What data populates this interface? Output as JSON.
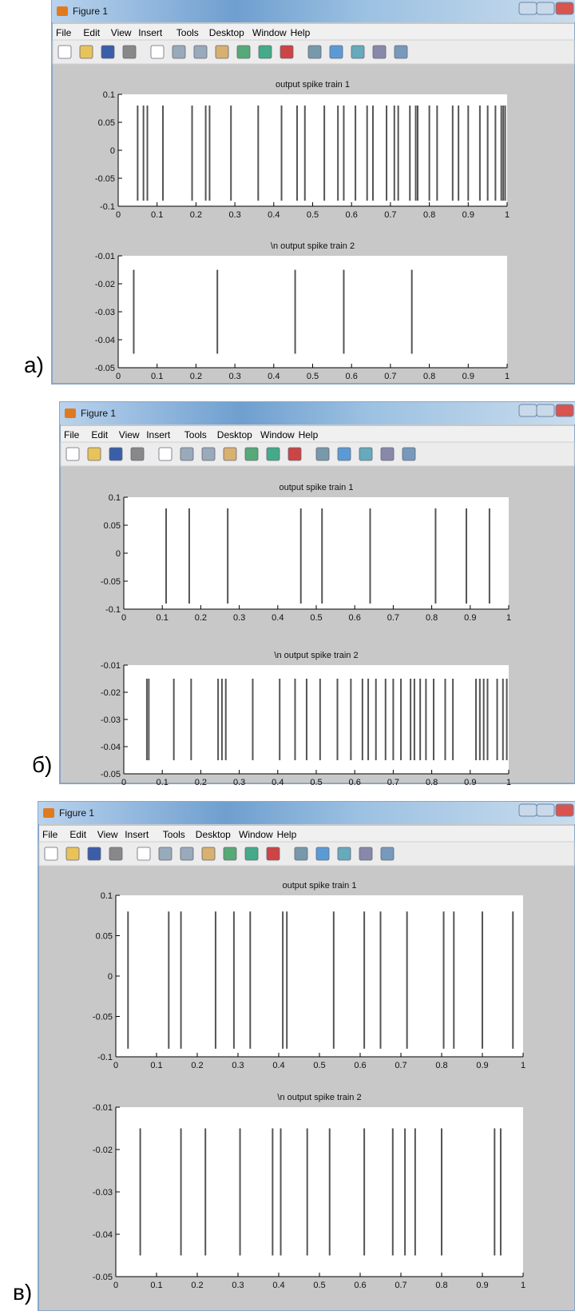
{
  "panels": [
    {
      "label": "а)",
      "window": {
        "title": "Figure 1",
        "menu": [
          "File",
          "Edit",
          "View",
          "Insert",
          "Tools",
          "Desktop",
          "Window",
          "Help"
        ]
      },
      "chart_data": [
        {
          "type": "spike",
          "title": "output spike train 1",
          "x": [
            0.05,
            0.065,
            0.075,
            0.115,
            0.19,
            0.225,
            0.235,
            0.29,
            0.36,
            0.42,
            0.46,
            0.48,
            0.53,
            0.565,
            0.58,
            0.61,
            0.64,
            0.655,
            0.69,
            0.71,
            0.72,
            0.75,
            0.765,
            0.77,
            0.8,
            0.82,
            0.86,
            0.875,
            0.9,
            0.93,
            0.95,
            0.97,
            0.985,
            0.99,
            0.995
          ],
          "y_low": -0.09,
          "y_high": 0.08,
          "color": "#555555",
          "xlim": [
            0,
            1
          ],
          "ylim": [
            -0.1,
            0.1
          ],
          "xticks": [
            0,
            0.1,
            0.2,
            0.3,
            0.4,
            0.5,
            0.6,
            0.7,
            0.8,
            0.9,
            1
          ],
          "yticks": [
            -0.1,
            -0.05,
            0,
            0.05,
            0.1
          ]
        },
        {
          "type": "spike",
          "title": "\\n output spike train 2",
          "x": [
            0.04,
            0.255,
            0.455,
            0.58,
            0.755
          ],
          "y_low": -0.045,
          "y_high": -0.015,
          "color": "#555555",
          "xlim": [
            0,
            1
          ],
          "ylim": [
            -0.05,
            -0.01
          ],
          "xticks": [
            0,
            0.1,
            0.2,
            0.3,
            0.4,
            0.5,
            0.6,
            0.7,
            0.8,
            0.9,
            1
          ],
          "yticks": [
            -0.05,
            -0.04,
            -0.03,
            -0.02,
            -0.01
          ]
        }
      ]
    },
    {
      "label": "б)",
      "window": {
        "title": "Figure 1",
        "menu": [
          "File",
          "Edit",
          "View",
          "Insert",
          "Tools",
          "Desktop",
          "Window",
          "Help"
        ]
      },
      "chart_data": [
        {
          "type": "spike",
          "title": "output spike train 1",
          "x": [
            0.11,
            0.17,
            0.27,
            0.46,
            0.515,
            0.64,
            0.81,
            0.89,
            0.95
          ],
          "y_low": -0.09,
          "y_high": 0.08,
          "color": "#555555",
          "xlim": [
            0,
            1
          ],
          "ylim": [
            -0.1,
            0.1
          ],
          "xticks": [
            0,
            0.1,
            0.2,
            0.3,
            0.4,
            0.5,
            0.6,
            0.7,
            0.8,
            0.9,
            1
          ],
          "yticks": [
            -0.1,
            -0.05,
            0,
            0.05,
            0.1
          ]
        },
        {
          "type": "spike",
          "title": "\\n output spike train 2",
          "x": [
            0.06,
            0.065,
            0.13,
            0.175,
            0.245,
            0.255,
            0.265,
            0.335,
            0.405,
            0.445,
            0.475,
            0.51,
            0.555,
            0.59,
            0.62,
            0.635,
            0.655,
            0.68,
            0.7,
            0.72,
            0.745,
            0.755,
            0.77,
            0.785,
            0.805,
            0.835,
            0.855,
            0.915,
            0.925,
            0.935,
            0.945,
            0.97,
            0.985,
            0.995
          ],
          "y_low": -0.045,
          "y_high": -0.015,
          "color": "#555555",
          "xlim": [
            0,
            1
          ],
          "ylim": [
            -0.05,
            -0.01
          ],
          "xticks": [
            0,
            0.1,
            0.2,
            0.3,
            0.4,
            0.5,
            0.6,
            0.7,
            0.8,
            0.9,
            1
          ],
          "yticks": [
            -0.05,
            -0.04,
            -0.03,
            -0.02,
            -0.01
          ]
        }
      ]
    },
    {
      "label": "в)",
      "window": {
        "title": "Figure 1",
        "menu": [
          "File",
          "Edit",
          "View",
          "Insert",
          "Tools",
          "Desktop",
          "Window",
          "Help"
        ]
      },
      "chart_data": [
        {
          "type": "spike",
          "title": "output spike train 1",
          "x": [
            0.03,
            0.13,
            0.16,
            0.245,
            0.29,
            0.33,
            0.41,
            0.42,
            0.535,
            0.61,
            0.65,
            0.715,
            0.805,
            0.83,
            0.9,
            0.975
          ],
          "y_low": -0.09,
          "y_high": 0.08,
          "color": "#555555",
          "xlim": [
            0,
            1
          ],
          "ylim": [
            -0.1,
            0.1
          ],
          "xticks": [
            0,
            0.1,
            0.2,
            0.3,
            0.4,
            0.5,
            0.6,
            0.7,
            0.8,
            0.9,
            1
          ],
          "yticks": [
            -0.1,
            -0.05,
            0,
            0.05,
            0.1
          ]
        },
        {
          "type": "spike",
          "title": "\\n output spike train 2",
          "x": [
            0.06,
            0.16,
            0.22,
            0.305,
            0.385,
            0.405,
            0.47,
            0.525,
            0.61,
            0.68,
            0.71,
            0.735,
            0.8,
            0.93,
            0.945
          ],
          "y_low": -0.045,
          "y_high": -0.015,
          "color": "#555555",
          "xlim": [
            0,
            1
          ],
          "ylim": [
            -0.05,
            -0.01
          ],
          "xticks": [
            0,
            0.1,
            0.2,
            0.3,
            0.4,
            0.5,
            0.6,
            0.7,
            0.8,
            0.9,
            1
          ],
          "yticks": [
            -0.05,
            -0.04,
            -0.03,
            -0.02,
            -0.01
          ]
        }
      ]
    }
  ]
}
